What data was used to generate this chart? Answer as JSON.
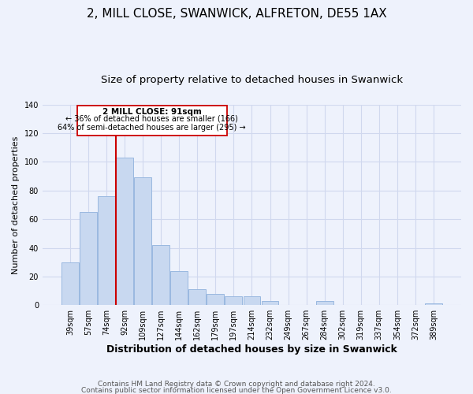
{
  "title": "2, MILL CLOSE, SWANWICK, ALFRETON, DE55 1AX",
  "subtitle": "Size of property relative to detached houses in Swanwick",
  "xlabel": "Distribution of detached houses by size in Swanwick",
  "ylabel": "Number of detached properties",
  "bar_labels": [
    "39sqm",
    "57sqm",
    "74sqm",
    "92sqm",
    "109sqm",
    "127sqm",
    "144sqm",
    "162sqm",
    "179sqm",
    "197sqm",
    "214sqm",
    "232sqm",
    "249sqm",
    "267sqm",
    "284sqm",
    "302sqm",
    "319sqm",
    "337sqm",
    "354sqm",
    "372sqm",
    "389sqm"
  ],
  "bar_heights": [
    30,
    65,
    76,
    103,
    89,
    42,
    24,
    11,
    8,
    6,
    6,
    3,
    0,
    0,
    3,
    0,
    0,
    0,
    0,
    0,
    1
  ],
  "bar_color": "#c8d8f0",
  "bar_edge_color": "#9ab8e0",
  "vline_x_index": 3,
  "vline_color": "#cc0000",
  "ylim": [
    0,
    140
  ],
  "yticks": [
    0,
    20,
    40,
    60,
    80,
    100,
    120,
    140
  ],
  "annotation_title": "2 MILL CLOSE: 91sqm",
  "annotation_line1": "← 36% of detached houses are smaller (166)",
  "annotation_line2": "64% of semi-detached houses are larger (295) →",
  "annotation_box_color": "#ffffff",
  "annotation_box_edge": "#cc0000",
  "footer1": "Contains HM Land Registry data © Crown copyright and database right 2024.",
  "footer2": "Contains public sector information licensed under the Open Government Licence v3.0.",
  "background_color": "#eef2fc",
  "plot_background": "#eef2fc",
  "grid_color": "#d0d8ee",
  "title_fontsize": 11,
  "subtitle_fontsize": 9.5,
  "xlabel_fontsize": 9,
  "ylabel_fontsize": 8,
  "tick_fontsize": 7,
  "footer_fontsize": 6.5
}
